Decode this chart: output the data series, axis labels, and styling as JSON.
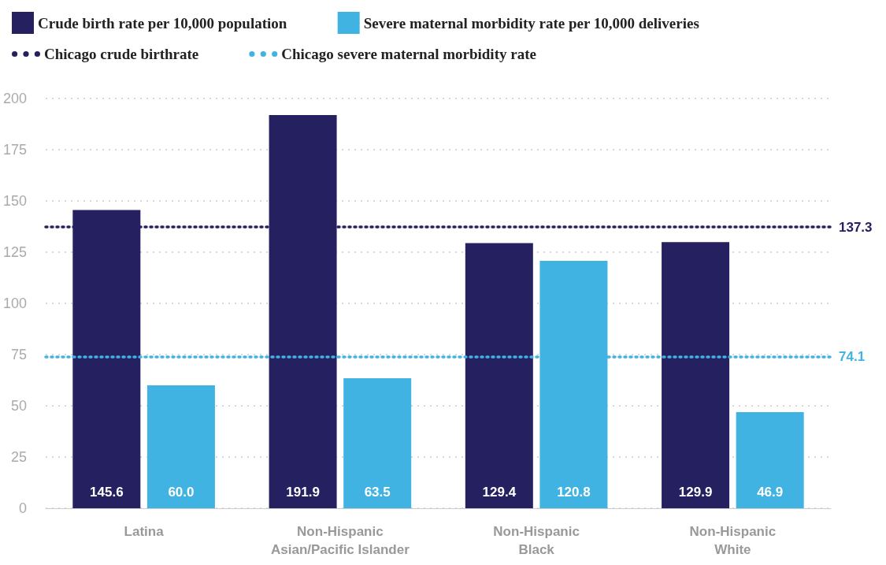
{
  "chart_data": {
    "type": "bar",
    "categories": [
      "Latina",
      "Non-Hispanic\nAsian/Pacific Islander",
      "Non-Hispanic\nBlack",
      "Non-Hispanic\nWhite"
    ],
    "series": [
      {
        "name": "Crude birth rate per 10,000 population",
        "color": "#252060",
        "values": [
          145.6,
          191.9,
          129.4,
          129.9
        ],
        "value_labels": [
          "145.6",
          "191.9",
          "129.4",
          "129.9"
        ]
      },
      {
        "name": "Severe maternal morbidity rate per 10,000 deliveries",
        "color": "#41b3e3",
        "values": [
          60.0,
          63.5,
          120.8,
          46.9
        ],
        "value_labels": [
          "60.0",
          "63.5",
          "120.8",
          "46.9"
        ]
      }
    ],
    "ref_lines": [
      {
        "axis": "y",
        "value": 137.3,
        "label": "137.3",
        "color": "#252060",
        "line_style": "dotted"
      },
      {
        "axis": "y",
        "value": 74.1,
        "label": "74.1",
        "color": "#41b3e3",
        "line_style": "dotted"
      }
    ],
    "annotations": [
      "Chicago crude birthrate",
      "Chicago severe maternal morbidity rate"
    ],
    "ylim": [
      0,
      200
    ],
    "yticks": [
      0,
      25,
      50,
      75,
      100,
      125,
      150,
      175,
      200
    ],
    "grid": "y",
    "legend": "top left"
  }
}
